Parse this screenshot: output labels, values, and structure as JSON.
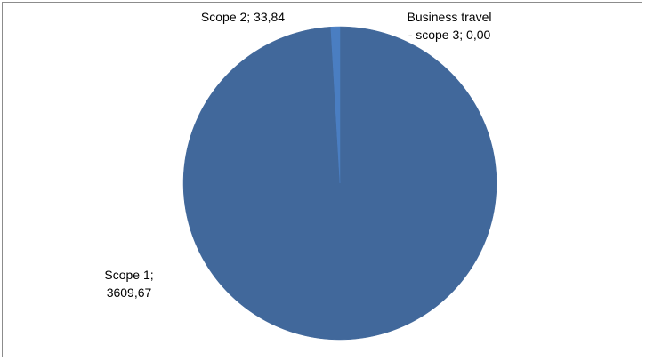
{
  "chart_data": {
    "type": "pie",
    "title": "",
    "series": [
      {
        "slices": [
          {
            "label": "Scope 1",
            "value": 3609.67,
            "label_text": [
              "Scope 1;",
              "3609,67"
            ],
            "color": "#41689b"
          },
          {
            "label": "Scope 2",
            "value": 33.84,
            "label_text": [
              "Scope 2; 33,84"
            ],
            "color": "#4a7ec2"
          },
          {
            "label": "Business travel - scope 3",
            "value": 0.0,
            "label_text": [
              "Business travel",
              "- scope 3; 0,00"
            ],
            "color": "#a5b6d8"
          }
        ]
      }
    ],
    "legend": "none",
    "data_labels": "category; value"
  }
}
